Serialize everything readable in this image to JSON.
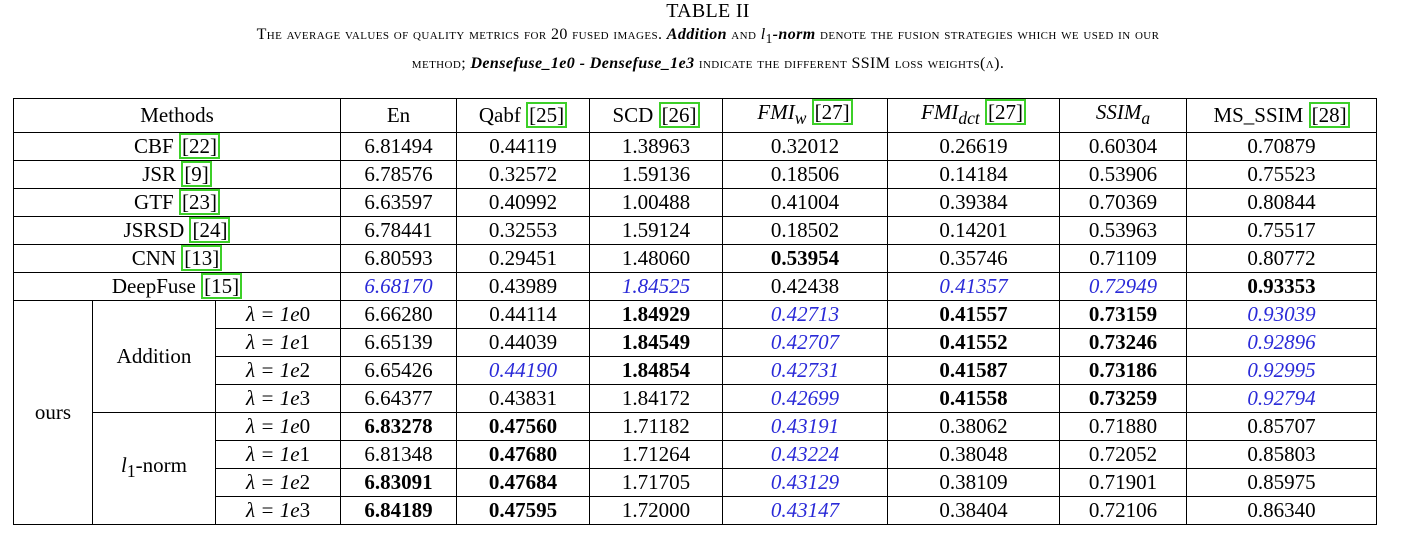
{
  "caption": {
    "table_label": "TABLE II",
    "line1_a": "The average values of quality metrics for 20 fused images. ",
    "line1_b": "Addition",
    "line1_c": " and ",
    "line1_d": "l",
    "line1_d_sub": "1",
    "line1_e": "-norm",
    "line1_f": " denote the fusion strategies which we used in our",
    "line2_a": "method; ",
    "line2_b": "Densefuse_1e0 - Densefuse_1e3",
    "line2_c": " indicate the different SSIM loss weights(λ)."
  },
  "header": {
    "methods": "Methods",
    "en": "En",
    "qabf": "Qabf ",
    "qabf_cite": "[25]",
    "scd": "SCD ",
    "scd_cite": "[26]",
    "fmiw": "FMI",
    "fmiw_sub": "w",
    "fmiw_cite": "[27]",
    "fmidct": "FMI",
    "fmidct_sub": "dct",
    "fmidct_cite": "[27]",
    "ssima": "SSIM",
    "ssima_sub": "a",
    "msssim": "MS_SSIM ",
    "msssim_cite": "[28]"
  },
  "baselines": [
    {
      "name": "CBF ",
      "cite": "[22]",
      "values": [
        "6.81494",
        "0.44119",
        "1.38963",
        "0.32012",
        "0.26619",
        "0.60304",
        "0.70879"
      ]
    },
    {
      "name": "JSR ",
      "cite": "[9]",
      "values": [
        "6.78576",
        "0.32572",
        "1.59136",
        "0.18506",
        "0.14184",
        "0.53906",
        "0.75523"
      ]
    },
    {
      "name": "GTF ",
      "cite": "[23]",
      "values": [
        "6.63597",
        "0.40992",
        "1.00488",
        "0.41004",
        "0.39384",
        "0.70369",
        "0.80844"
      ]
    },
    {
      "name": "JSRSD ",
      "cite": "[24]",
      "values": [
        "6.78441",
        "0.32553",
        "1.59124",
        "0.18502",
        "0.14201",
        "0.53963",
        "0.75517"
      ]
    },
    {
      "name": "CNN ",
      "cite": "[13]",
      "values": [
        "6.80593",
        "0.29451",
        "1.48060",
        "0.53954",
        "0.35746",
        "0.71109",
        "0.80772"
      ]
    },
    {
      "name": "DeepFuse ",
      "cite": "[15]",
      "values": [
        "6.68170",
        "0.43989",
        "1.84525",
        "0.42438",
        "0.41357",
        "0.72949",
        "0.93353"
      ]
    }
  ],
  "ours": {
    "label": "ours",
    "addition_label": "Addition",
    "l1_label_l": "l",
    "l1_label_sub": "1",
    "l1_label_rest": "-norm",
    "lambda_prefix": "λ = 1",
    "lambda_e": "e",
    "addition": [
      {
        "exp": "0",
        "values": [
          "6.66280",
          "0.44114",
          "1.84929",
          "0.42713",
          "0.41557",
          "0.73159",
          "0.93039"
        ]
      },
      {
        "exp": "1",
        "values": [
          "6.65139",
          "0.44039",
          "1.84549",
          "0.42707",
          "0.41552",
          "0.73246",
          "0.92896"
        ]
      },
      {
        "exp": "2",
        "values": [
          "6.65426",
          "0.44190",
          "1.84854",
          "0.42731",
          "0.41587",
          "0.73186",
          "0.92995"
        ]
      },
      {
        "exp": "3",
        "values": [
          "6.64377",
          "0.43831",
          "1.84172",
          "0.42699",
          "0.41558",
          "0.73259",
          "0.92794"
        ]
      }
    ],
    "l1": [
      {
        "exp": "0",
        "values": [
          "6.83278",
          "0.47560",
          "1.71182",
          "0.43191",
          "0.38062",
          "0.71880",
          "0.85707"
        ]
      },
      {
        "exp": "1",
        "values": [
          "6.81348",
          "0.47680",
          "1.71264",
          "0.43224",
          "0.38048",
          "0.72052",
          "0.85803"
        ]
      },
      {
        "exp": "2",
        "values": [
          "6.83091",
          "0.47684",
          "1.71705",
          "0.43129",
          "0.38109",
          "0.71901",
          "0.85975"
        ]
      },
      {
        "exp": "3",
        "values": [
          "6.84189",
          "0.47595",
          "1.72000",
          "0.43147",
          "0.38404",
          "0.72106",
          "0.86340"
        ]
      }
    ]
  }
}
